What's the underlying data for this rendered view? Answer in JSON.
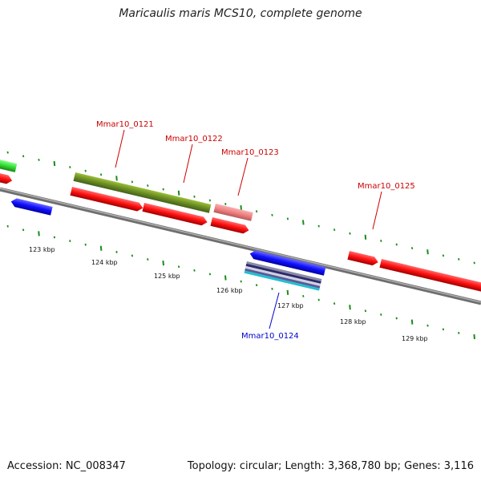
{
  "title": "Maricaulis maris MCS10, complete genome",
  "footer": {
    "accession": "Accession: NC_008347",
    "topology": "Topology: circular; Length: 3,368,780 bp; Genes: 3,116"
  },
  "ticks": [
    "123 kbp",
    "124 kbp",
    "125 kbp",
    "126 kbp",
    "127 kbp",
    "128 kbp",
    "129 kbp"
  ],
  "gene_labels": [
    "Mmar10_0121",
    "Mmar10_0122",
    "Mmar10_0123",
    "Mmar10_0124",
    "Mmar10_0125"
  ],
  "colors": {
    "cds_red": "#ff1a1a",
    "cds_blue": "#1a1aff",
    "olive": "#6b8e23",
    "green": "#33dd33",
    "pink": "#f08080",
    "backbone": "#808080",
    "tick_green": "#1a8c1a",
    "label_red": "#cc0000",
    "label_blue": "#0000cc"
  }
}
